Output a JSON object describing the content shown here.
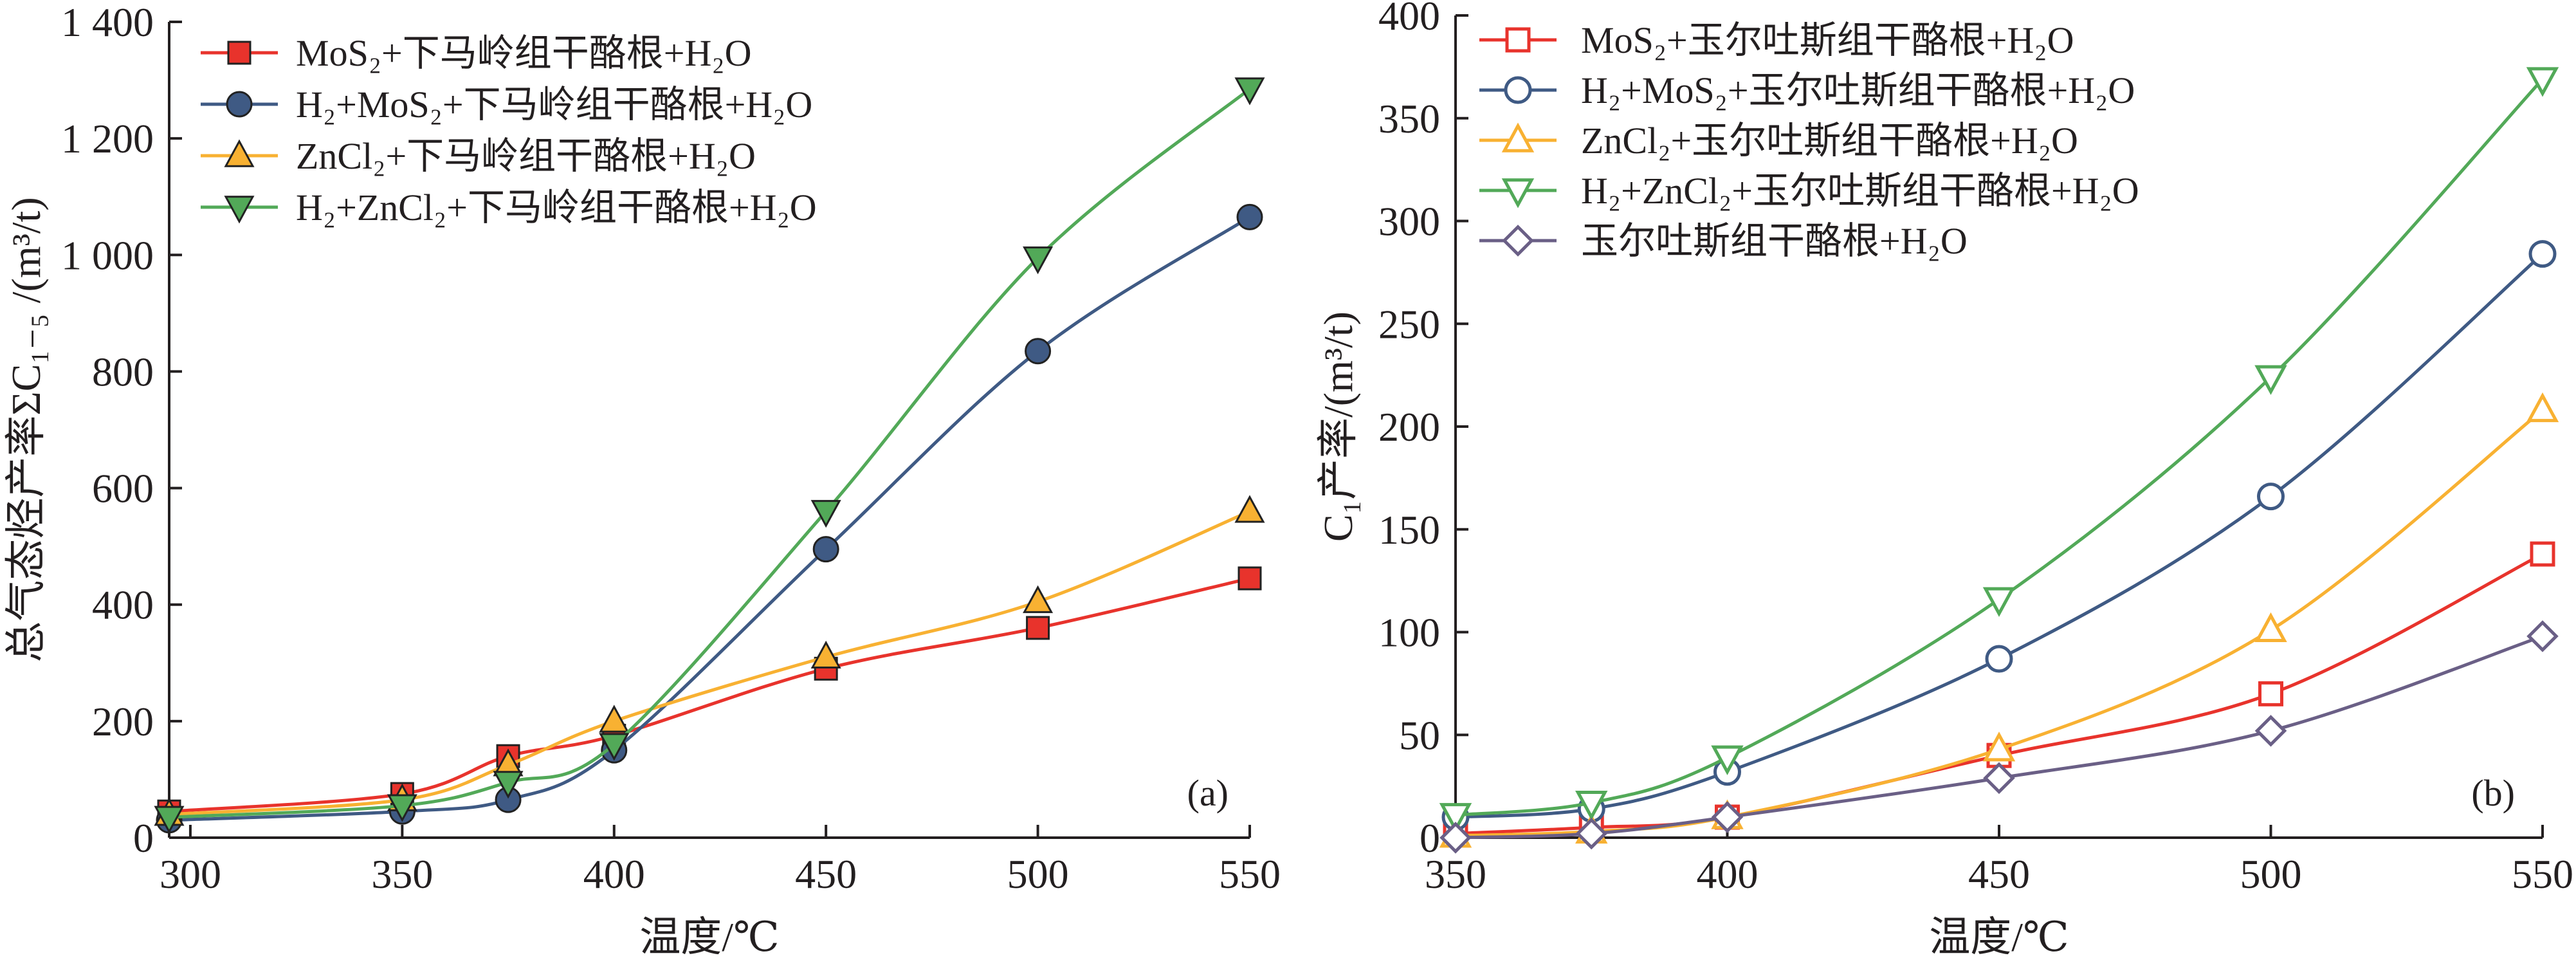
{
  "chart_data": [
    {
      "type": "line",
      "panel_label": "(a)",
      "xlabel": "温度/℃",
      "ylabel": "总气态烃产率ΣC₁₋₅ /(m³/t)",
      "xlim": [
        295,
        550
      ],
      "ylim": [
        0,
        1400
      ],
      "x_ticks": [
        300,
        350,
        400,
        450,
        500,
        550
      ],
      "y_ticks": [
        0,
        200,
        400,
        600,
        800,
        1000,
        1200,
        1400
      ],
      "y_tick_labels": [
        "0",
        "200",
        "400",
        "600",
        "800",
        "1 000",
        "1 200",
        "1 400"
      ],
      "legend_position": "top-left",
      "grid": false,
      "series": [
        {
          "name": "MoS₂+下马岭组干酪根+H₂O",
          "color": "#e8332c",
          "marker": "square",
          "filled": true,
          "x": [
            295,
            350,
            375,
            400,
            450,
            500,
            550
          ],
          "y": [
            45,
            75,
            140,
            175,
            290,
            360,
            445
          ]
        },
        {
          "name": "H₂+MoS₂+下马岭组干酪根+H₂O",
          "color": "#3f5a84",
          "marker": "circle",
          "filled": true,
          "x": [
            295,
            350,
            375,
            400,
            450,
            500,
            550
          ],
          "y": [
            30,
            45,
            65,
            150,
            495,
            835,
            1065
          ]
        },
        {
          "name": "ZnCl₂+下马岭组干酪根+H₂O",
          "color": "#f8b132",
          "marker": "triangle-up",
          "filled": true,
          "x": [
            295,
            350,
            375,
            400,
            450,
            500,
            550
          ],
          "y": [
            40,
            65,
            125,
            200,
            310,
            405,
            560
          ]
        },
        {
          "name": "H₂+ZnCl₂+下马岭组干酪根+H₂O",
          "color": "#52a958",
          "marker": "triangle-down",
          "filled": true,
          "x": [
            295,
            350,
            375,
            400,
            450,
            500,
            550
          ],
          "y": [
            35,
            55,
            95,
            160,
            560,
            995,
            1285
          ]
        }
      ]
    },
    {
      "type": "line",
      "panel_label": "(b)",
      "xlabel": "温度/℃",
      "ylabel": "C₁产率/(m³/t)",
      "xlim": [
        350,
        550
      ],
      "ylim": [
        0,
        400
      ],
      "x_ticks": [
        350,
        400,
        450,
        500,
        550
      ],
      "y_ticks": [
        0,
        50,
        100,
        150,
        200,
        250,
        300,
        350,
        400
      ],
      "y_tick_labels": [
        "0",
        "50",
        "100",
        "150",
        "200",
        "250",
        "300",
        "350",
        "400"
      ],
      "legend_position": "top-left",
      "grid": false,
      "series": [
        {
          "name": "MoS₂+玉尔吐斯组干酪根+H₂O",
          "color": "#e8332c",
          "marker": "square",
          "filled": false,
          "x": [
            350,
            375,
            400,
            450,
            500,
            550
          ],
          "y": [
            2,
            5,
            10,
            40,
            70,
            138
          ]
        },
        {
          "name": "H₂+MoS₂+玉尔吐斯组干酪根+H₂O",
          "color": "#3f5a84",
          "marker": "circle",
          "filled": false,
          "x": [
            350,
            375,
            400,
            450,
            500,
            550
          ],
          "y": [
            10,
            14,
            32,
            87,
            166,
            284
          ]
        },
        {
          "name": "ZnCl₂+玉尔吐斯组干酪根+H₂O",
          "color": "#f8b132",
          "marker": "triangle-up",
          "filled": false,
          "x": [
            350,
            375,
            400,
            450,
            500,
            550
          ],
          "y": [
            1,
            3,
            10,
            43,
            101,
            208
          ]
        },
        {
          "name": "H₂+ZnCl₂+玉尔吐斯组干酪根+H₂O",
          "color": "#52a958",
          "marker": "triangle-down",
          "filled": false,
          "x": [
            350,
            375,
            400,
            450,
            500,
            550
          ],
          "y": [
            11,
            17,
            39,
            116,
            224,
            369
          ]
        },
        {
          "name": "玉尔吐斯组干酪根+H₂O",
          "color": "#6a5f86",
          "marker": "diamond",
          "filled": false,
          "x": [
            350,
            375,
            400,
            450,
            500,
            550
          ],
          "y": [
            0,
            2,
            10,
            29,
            52,
            98
          ]
        }
      ]
    }
  ]
}
